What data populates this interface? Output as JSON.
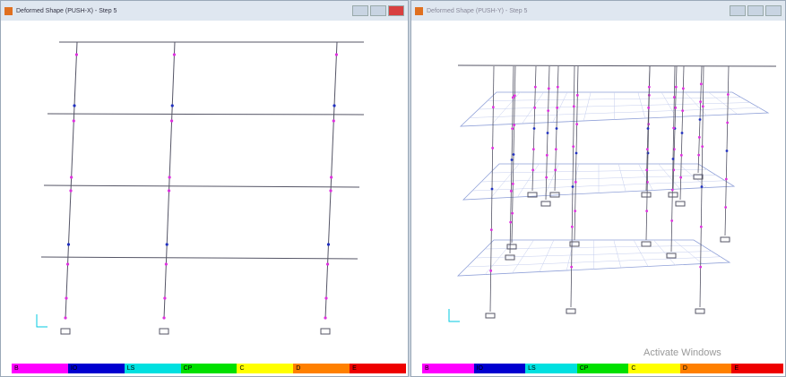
{
  "windows": [
    {
      "title": "Deformed Shape (PUSH-X) - Step 5",
      "legend": [
        {
          "label": "B",
          "color": "#ff00ff"
        },
        {
          "label": "IO",
          "color": "#0000d0"
        },
        {
          "label": "LS",
          "color": "#00e0e0"
        },
        {
          "label": "CP",
          "color": "#00e000"
        },
        {
          "label": "C",
          "color": "#ffff00"
        },
        {
          "label": "D",
          "color": "#ff8000"
        },
        {
          "label": "E",
          "color": "#ee0000"
        }
      ]
    },
    {
      "title": "Deformed Shape (PUSH-Y) - Step 5",
      "legend": [
        {
          "label": "B",
          "color": "#ff00ff"
        },
        {
          "label": "IO",
          "color": "#0000d0"
        },
        {
          "label": "LS",
          "color": "#00e0e0"
        },
        {
          "label": "CP",
          "color": "#00e000"
        },
        {
          "label": "C",
          "color": "#ffff00"
        },
        {
          "label": "D",
          "color": "#ff8000"
        },
        {
          "label": "E",
          "color": "#ee0000"
        }
      ]
    }
  ],
  "watermark": "Activate Windows"
}
